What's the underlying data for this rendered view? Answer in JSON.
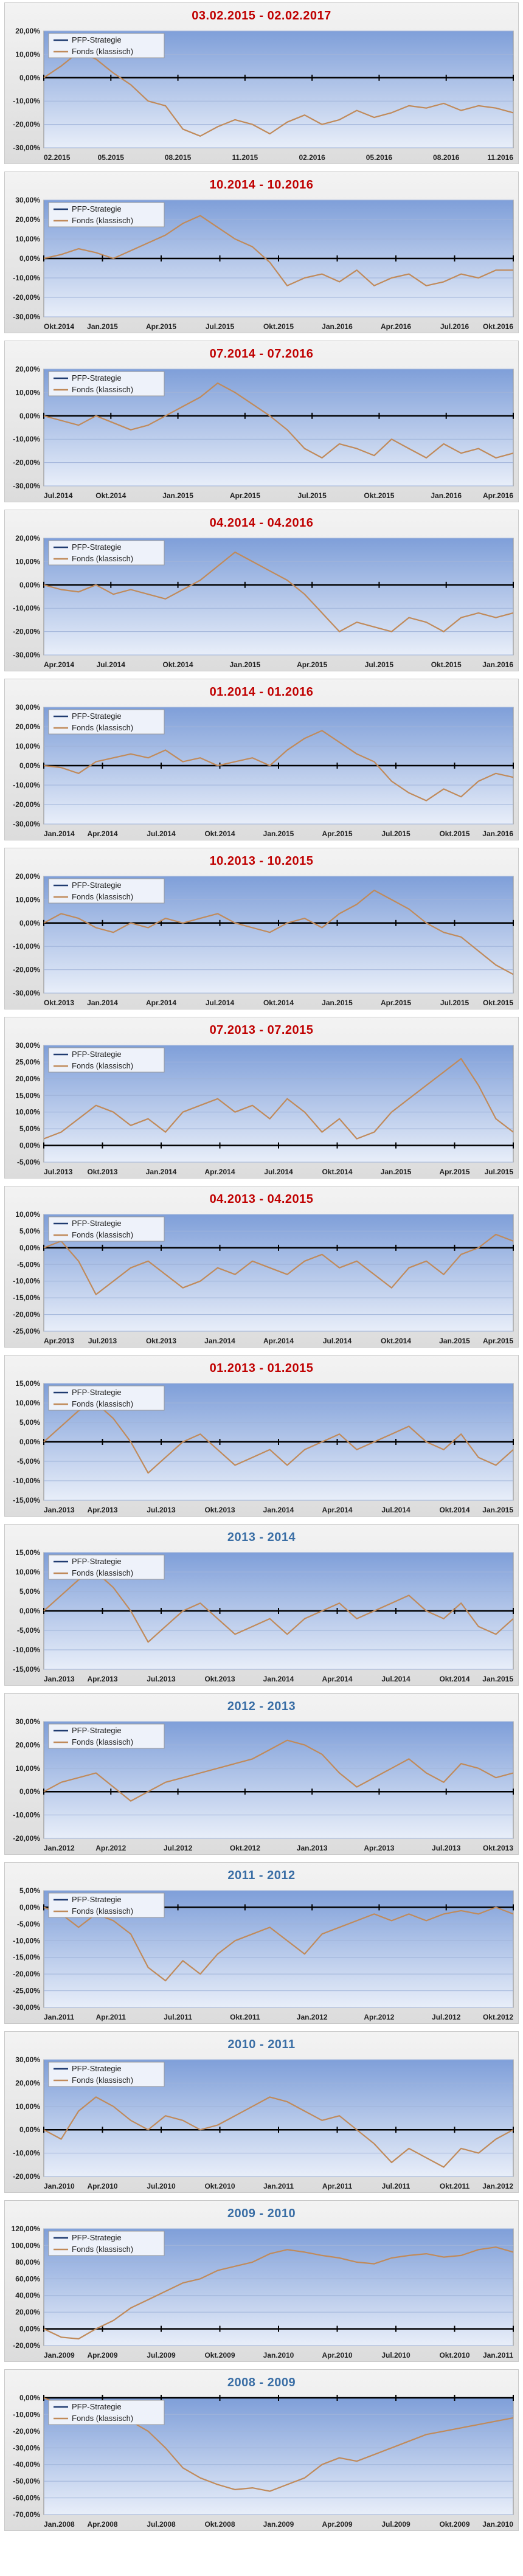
{
  "colors": {
    "title_red": "#c00000",
    "title_blue": "#3a6ea5",
    "plot_top": "#7f9fd9",
    "plot_bottom": "#e8eef9",
    "fonds_line": "#c08a5a",
    "pfp_line": "#1f3b70",
    "zero_line": "#000000"
  },
  "legend": {
    "pfp": "PFP-Strategie",
    "fonds": "Fonds (klassisch)"
  },
  "chart_data": [
    {
      "type": "line",
      "title": "03.02.2015 - 02.02.2017",
      "title_color": "red",
      "yticks": [
        "20,00%",
        "10,00%",
        "0,00%",
        "-10,00%",
        "-20,00%",
        "-30,00%"
      ],
      "ylim": [
        -30,
        20
      ],
      "xticks": [
        "02.2015",
        "05.2015",
        "08.2015",
        "11.2015",
        "02.2016",
        "05.2016",
        "08.2016",
        "11.2016"
      ],
      "series": [
        {
          "name": "Fonds (klassisch)",
          "values": [
            0,
            5,
            11,
            8,
            2,
            -3,
            -10,
            -12,
            -22,
            -25,
            -21,
            -18,
            -20,
            -24,
            -19,
            -16,
            -20,
            -18,
            -14,
            -17,
            -15,
            -12,
            -13,
            -11,
            -14,
            -12,
            -13,
            -15
          ]
        }
      ]
    },
    {
      "type": "line",
      "title": "10.2014 - 10.2016",
      "title_color": "red",
      "yticks": [
        "30,00%",
        "20,00%",
        "10,00%",
        "0,00%",
        "-10,00%",
        "-20,00%",
        "-30,00%"
      ],
      "ylim": [
        -30,
        30
      ],
      "xticks": [
        "Okt.2014",
        "Jan.2015",
        "Apr.2015",
        "Jul.2015",
        "Okt.2015",
        "Jan.2016",
        "Apr.2016",
        "Jul.2016",
        "Okt.2016"
      ],
      "series": [
        {
          "name": "Fonds (klassisch)",
          "values": [
            0,
            2,
            5,
            3,
            0,
            4,
            8,
            12,
            18,
            22,
            16,
            10,
            6,
            -2,
            -14,
            -10,
            -8,
            -12,
            -6,
            -14,
            -10,
            -8,
            -14,
            -12,
            -8,
            -10,
            -6,
            -6
          ]
        }
      ]
    },
    {
      "type": "line",
      "title": "07.2014 - 07.2016",
      "title_color": "red",
      "yticks": [
        "20,00%",
        "10,00%",
        "0,00%",
        "-10,00%",
        "-20,00%",
        "-30,00%"
      ],
      "ylim": [
        -30,
        20
      ],
      "xticks": [
        "Jul.2014",
        "Okt.2014",
        "Jan.2015",
        "Apr.2015",
        "Jul.2015",
        "Okt.2015",
        "Jan.2016",
        "Apr.2016"
      ],
      "series": [
        {
          "name": "Fonds (klassisch)",
          "values": [
            0,
            -2,
            -4,
            0,
            -3,
            -6,
            -4,
            0,
            4,
            8,
            14,
            10,
            5,
            0,
            -6,
            -14,
            -18,
            -12,
            -14,
            -17,
            -10,
            -14,
            -18,
            -12,
            -16,
            -14,
            -18,
            -16
          ]
        }
      ]
    },
    {
      "type": "line",
      "title": "04.2014 - 04.2016",
      "title_color": "red",
      "yticks": [
        "20,00%",
        "10,00%",
        "0,00%",
        "-10,00%",
        "-20,00%",
        "-30,00%"
      ],
      "ylim": [
        -30,
        20
      ],
      "xticks": [
        "Apr.2014",
        "Jul.2014",
        "Okt.2014",
        "Jan.2015",
        "Apr.2015",
        "Jul.2015",
        "Okt.2015",
        "Jan.2016"
      ],
      "series": [
        {
          "name": "Fonds (klassisch)",
          "values": [
            0,
            -2,
            -3,
            0,
            -4,
            -2,
            -4,
            -6,
            -2,
            2,
            8,
            14,
            10,
            6,
            2,
            -4,
            -12,
            -20,
            -16,
            -18,
            -20,
            -14,
            -16,
            -20,
            -14,
            -12,
            -14,
            -12
          ]
        }
      ]
    },
    {
      "type": "line",
      "title": "01.2014 - 01.2016",
      "title_color": "red",
      "yticks": [
        "30,00%",
        "20,00%",
        "10,00%",
        "0,00%",
        "-10,00%",
        "-20,00%",
        "-30,00%"
      ],
      "ylim": [
        -30,
        30
      ],
      "xticks": [
        "Jan.2014",
        "Apr.2014",
        "Jul.2014",
        "Okt.2014",
        "Jan.2015",
        "Apr.2015",
        "Jul.2015",
        "Okt.2015",
        "Jan.2016"
      ],
      "series": [
        {
          "name": "Fonds (klassisch)",
          "values": [
            0,
            -1,
            -4,
            2,
            4,
            6,
            4,
            8,
            2,
            4,
            0,
            2,
            4,
            0,
            8,
            14,
            18,
            12,
            6,
            2,
            -8,
            -14,
            -18,
            -12,
            -16,
            -8,
            -4,
            -6
          ]
        }
      ]
    },
    {
      "type": "line",
      "title": "10.2013 - 10.2015",
      "title_color": "red",
      "yticks": [
        "20,00%",
        "10,00%",
        "0,00%",
        "-10,00%",
        "-20,00%",
        "-30,00%"
      ],
      "ylim": [
        -30,
        20
      ],
      "xticks": [
        "Okt.2013",
        "Jan.2014",
        "Apr.2014",
        "Jul.2014",
        "Okt.2014",
        "Jan.2015",
        "Apr.2015",
        "Jul.2015",
        "Okt.2015"
      ],
      "series": [
        {
          "name": "Fonds (klassisch)",
          "values": [
            0,
            4,
            2,
            -2,
            -4,
            0,
            -2,
            2,
            0,
            2,
            4,
            0,
            -2,
            -4,
            0,
            2,
            -2,
            4,
            8,
            14,
            10,
            6,
            0,
            -4,
            -6,
            -12,
            -18,
            -22
          ]
        }
      ]
    },
    {
      "type": "line",
      "title": "07.2013 - 07.2015",
      "title_color": "red",
      "yticks": [
        "30,00%",
        "25,00%",
        "20,00%",
        "15,00%",
        "10,00%",
        "5,00%",
        "0,00%",
        "-5,00%"
      ],
      "ylim": [
        -5,
        30
      ],
      "xticks": [
        "Jul.2013",
        "Okt.2013",
        "Jan.2014",
        "Apr.2014",
        "Jul.2014",
        "Okt.2014",
        "Jan.2015",
        "Apr.2015",
        "Jul.2015"
      ],
      "series": [
        {
          "name": "Fonds (klassisch)",
          "values": [
            2,
            4,
            8,
            12,
            10,
            6,
            8,
            4,
            10,
            12,
            14,
            10,
            12,
            8,
            14,
            10,
            4,
            8,
            2,
            4,
            10,
            14,
            18,
            22,
            26,
            18,
            8,
            4
          ]
        }
      ]
    },
    {
      "type": "line",
      "title": "04.2013 - 04.2015",
      "title_color": "red",
      "yticks": [
        "10,00%",
        "5,00%",
        "0,00%",
        "-5,00%",
        "-10,00%",
        "-15,00%",
        "-20,00%",
        "-25,00%"
      ],
      "ylim": [
        -25,
        10
      ],
      "xticks": [
        "Apr.2013",
        "Jul.2013",
        "Okt.2013",
        "Jan.2014",
        "Apr.2014",
        "Jul.2014",
        "Okt.2014",
        "Jan.2015",
        "Apr.2015"
      ],
      "series": [
        {
          "name": "Fonds (klassisch)",
          "values": [
            0,
            2,
            -4,
            -14,
            -10,
            -6,
            -4,
            -8,
            -12,
            -10,
            -6,
            -8,
            -4,
            -6,
            -8,
            -4,
            -2,
            -6,
            -4,
            -8,
            -12,
            -6,
            -4,
            -8,
            -2,
            0,
            4,
            2
          ]
        }
      ]
    },
    {
      "type": "line",
      "title": "01.2013 - 01.2015",
      "title_color": "red",
      "yticks": [
        "15,00%",
        "10,00%",
        "5,00%",
        "0,00%",
        "-5,00%",
        "-10,00%",
        "-15,00%"
      ],
      "ylim": [
        -15,
        15
      ],
      "xticks": [
        "Jan.2013",
        "Apr.2013",
        "Jul.2013",
        "Okt.2013",
        "Jan.2014",
        "Apr.2014",
        "Jul.2014",
        "Okt.2014",
        "Jan.2015"
      ],
      "series": [
        {
          "name": "Fonds (klassisch)",
          "values": [
            0,
            4,
            8,
            10,
            6,
            0,
            -8,
            -4,
            0,
            2,
            -2,
            -6,
            -4,
            -2,
            -6,
            -2,
            0,
            2,
            -2,
            0,
            2,
            4,
            0,
            -2,
            2,
            -4,
            -6,
            -2
          ]
        }
      ]
    },
    {
      "type": "line",
      "title": "2013 - 2014",
      "title_color": "blue",
      "yticks": [
        "15,00%",
        "10,00%",
        "5,00%",
        "0,00%",
        "-5,00%",
        "-10,00%",
        "-15,00%"
      ],
      "ylim": [
        -15,
        15
      ],
      "xticks": [
        "Jan.2013",
        "Apr.2013",
        "Jul.2013",
        "Okt.2013",
        "Jan.2014",
        "Apr.2014",
        "Jul.2014",
        "Okt.2014",
        "Jan.2015"
      ],
      "series": [
        {
          "name": "Fonds (klassisch)",
          "values": [
            0,
            4,
            8,
            10,
            6,
            0,
            -8,
            -4,
            0,
            2,
            -2,
            -6,
            -4,
            -2,
            -6,
            -2,
            0,
            2,
            -2,
            0,
            2,
            4,
            0,
            -2,
            2,
            -4,
            -6,
            -2
          ]
        }
      ]
    },
    {
      "type": "line",
      "title": "2012 - 2013",
      "title_color": "blue",
      "yticks": [
        "30,00%",
        "20,00%",
        "10,00%",
        "0,00%",
        "-10,00%",
        "-20,00%"
      ],
      "ylim": [
        -20,
        30
      ],
      "xticks": [
        "Jan.2012",
        "Apr.2012",
        "Jul.2012",
        "Okt.2012",
        "Jan.2013",
        "Apr.2013",
        "Jul.2013",
        "Okt.2013"
      ],
      "series": [
        {
          "name": "Fonds (klassisch)",
          "values": [
            0,
            4,
            6,
            8,
            2,
            -4,
            0,
            4,
            6,
            8,
            10,
            12,
            14,
            18,
            22,
            20,
            16,
            8,
            2,
            6,
            10,
            14,
            8,
            4,
            12,
            10,
            6,
            8
          ]
        }
      ]
    },
    {
      "type": "line",
      "title": "2011 - 2012",
      "title_color": "blue",
      "yticks": [
        "5,00%",
        "0,00%",
        "-5,00%",
        "-10,00%",
        "-15,00%",
        "-20,00%",
        "-25,00%",
        "-30,00%"
      ],
      "ylim": [
        -30,
        5
      ],
      "xticks": [
        "Jan.2011",
        "Apr.2011",
        "Jul.2011",
        "Okt.2011",
        "Jan.2012",
        "Apr.2012",
        "Jul.2012",
        "Okt.2012"
      ],
      "series": [
        {
          "name": "Fonds (klassisch)",
          "values": [
            0,
            -2,
            -6,
            -2,
            -4,
            -8,
            -18,
            -22,
            -16,
            -20,
            -14,
            -10,
            -8,
            -6,
            -10,
            -14,
            -8,
            -6,
            -4,
            -2,
            -4,
            -2,
            -4,
            -2,
            -1,
            -2,
            0,
            -2
          ]
        }
      ]
    },
    {
      "type": "line",
      "title": "2010 - 2011",
      "title_color": "blue",
      "yticks": [
        "30,00%",
        "20,00%",
        "10,00%",
        "0,00%",
        "-10,00%",
        "-20,00%"
      ],
      "ylim": [
        -20,
        30
      ],
      "xticks": [
        "Jan.2010",
        "Apr.2010",
        "Jul.2010",
        "Okt.2010",
        "Jan.2011",
        "Apr.2011",
        "Jul.2011",
        "Okt.2011",
        "Jan.2012"
      ],
      "series": [
        {
          "name": "Fonds (klassisch)",
          "values": [
            0,
            -4,
            8,
            14,
            10,
            4,
            0,
            6,
            4,
            0,
            2,
            6,
            10,
            14,
            12,
            8,
            4,
            6,
            0,
            -6,
            -14,
            -8,
            -12,
            -16,
            -8,
            -10,
            -4,
            0
          ]
        }
      ]
    },
    {
      "type": "line",
      "title": "2009 - 2010",
      "title_color": "blue",
      "yticks": [
        "120,00%",
        "100,00%",
        "80,00%",
        "60,00%",
        "40,00%",
        "20,00%",
        "0,00%",
        "-20,00%"
      ],
      "ylim": [
        -20,
        120
      ],
      "xticks": [
        "Jan.2009",
        "Apr.2009",
        "Jul.2009",
        "Okt.2009",
        "Jan.2010",
        "Apr.2010",
        "Jul.2010",
        "Okt.2010",
        "Jan.2011"
      ],
      "series": [
        {
          "name": "Fonds (klassisch)",
          "values": [
            0,
            -10,
            -12,
            0,
            10,
            25,
            35,
            45,
            55,
            60,
            70,
            75,
            80,
            90,
            95,
            92,
            88,
            85,
            80,
            78,
            85,
            88,
            90,
            86,
            88,
            95,
            98,
            92
          ]
        }
      ]
    },
    {
      "type": "line",
      "title": "2008 - 2009",
      "title_color": "blue",
      "yticks": [
        "0,00%",
        "-10,00%",
        "-20,00%",
        "-30,00%",
        "-40,00%",
        "-50,00%",
        "-60,00%",
        "-70,00%"
      ],
      "ylim": [
        -70,
        0
      ],
      "xticks": [
        "Jan.2008",
        "Apr.2008",
        "Jul.2008",
        "Okt.2008",
        "Jan.2009",
        "Apr.2009",
        "Jul.2009",
        "Okt.2009",
        "Jan.2010"
      ],
      "series": [
        {
          "name": "Fonds (klassisch)",
          "values": [
            0,
            -4,
            -8,
            -12,
            -10,
            -14,
            -20,
            -30,
            -42,
            -48,
            -52,
            -55,
            -54,
            -56,
            -52,
            -48,
            -40,
            -36,
            -38,
            -34,
            -30,
            -26,
            -22,
            -20,
            -18,
            -16,
            -14,
            -12
          ]
        }
      ]
    }
  ]
}
